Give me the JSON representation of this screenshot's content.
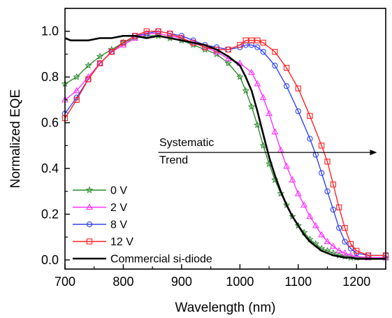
{
  "chart_data": {
    "type": "line",
    "xlabel": "Wavelength (nm)",
    "ylabel": "Normalized EQE",
    "xlim": [
      700,
      1250
    ],
    "ylim": [
      -0.04,
      1.1
    ],
    "x_ticks": [
      "700",
      "800",
      "900",
      "1000",
      "1100",
      "1200"
    ],
    "y_ticks": [
      "0.0",
      "0.2",
      "0.4",
      "0.6",
      "0.8",
      "1.0"
    ],
    "legend_position": "bottom-left",
    "annotation": {
      "text_line1": "Systematic",
      "text_line2": "Trend",
      "arrow_from_x": 860,
      "arrow_to_x": 1235,
      "arrow_y": 0.47
    },
    "series": [
      {
        "name": "0 V",
        "color": "#2e8b2e",
        "marker": "star",
        "x": [
          700,
          720,
          740,
          760,
          780,
          800,
          820,
          840,
          860,
          880,
          900,
          920,
          940,
          960,
          980,
          1000,
          1010,
          1020,
          1030,
          1040,
          1050,
          1060,
          1070,
          1080,
          1090,
          1100,
          1110,
          1120,
          1130,
          1140,
          1150,
          1160,
          1170,
          1180,
          1190,
          1200,
          1220,
          1250
        ],
        "y": [
          0.77,
          0.8,
          0.85,
          0.89,
          0.92,
          0.95,
          0.97,
          0.98,
          0.98,
          0.97,
          0.96,
          0.94,
          0.92,
          0.9,
          0.86,
          0.8,
          0.74,
          0.67,
          0.59,
          0.5,
          0.42,
          0.35,
          0.29,
          0.24,
          0.19,
          0.15,
          0.12,
          0.09,
          0.07,
          0.05,
          0.04,
          0.03,
          0.02,
          0.015,
          0.01,
          0.01,
          0.01,
          0.01
        ]
      },
      {
        "name": "2 V",
        "color": "#ff33ff",
        "marker": "triangle",
        "x": [
          700,
          720,
          740,
          760,
          780,
          800,
          820,
          840,
          860,
          880,
          900,
          920,
          940,
          960,
          980,
          1000,
          1020,
          1030,
          1040,
          1050,
          1060,
          1070,
          1080,
          1090,
          1100,
          1110,
          1120,
          1130,
          1140,
          1150,
          1160,
          1170,
          1180,
          1190,
          1200,
          1220,
          1250
        ],
        "y": [
          0.7,
          0.74,
          0.8,
          0.86,
          0.91,
          0.94,
          0.97,
          0.99,
          0.99,
          0.98,
          0.97,
          0.95,
          0.93,
          0.91,
          0.88,
          0.86,
          0.82,
          0.77,
          0.71,
          0.64,
          0.56,
          0.48,
          0.41,
          0.35,
          0.29,
          0.24,
          0.19,
          0.15,
          0.11,
          0.08,
          0.06,
          0.04,
          0.03,
          0.02,
          0.015,
          0.01,
          0.01
        ]
      },
      {
        "name": "8 V",
        "color": "#3344ee",
        "marker": "circle",
        "x": [
          700,
          720,
          740,
          760,
          780,
          800,
          820,
          840,
          860,
          880,
          900,
          920,
          940,
          960,
          980,
          1000,
          1010,
          1020,
          1030,
          1040,
          1060,
          1080,
          1100,
          1120,
          1130,
          1140,
          1150,
          1160,
          1170,
          1180,
          1190,
          1200,
          1220,
          1250
        ],
        "y": [
          0.64,
          0.71,
          0.79,
          0.86,
          0.91,
          0.95,
          0.98,
          0.99,
          1.0,
          0.99,
          0.98,
          0.96,
          0.94,
          0.93,
          0.92,
          0.93,
          0.94,
          0.94,
          0.93,
          0.91,
          0.85,
          0.76,
          0.65,
          0.53,
          0.46,
          0.38,
          0.3,
          0.22,
          0.14,
          0.08,
          0.05,
          0.03,
          0.02,
          0.02
        ]
      },
      {
        "name": "12 V",
        "color": "#ff2222",
        "marker": "square",
        "x": [
          700,
          720,
          740,
          760,
          780,
          800,
          820,
          840,
          860,
          880,
          900,
          920,
          940,
          960,
          980,
          1000,
          1010,
          1020,
          1030,
          1040,
          1060,
          1080,
          1100,
          1120,
          1140,
          1150,
          1160,
          1170,
          1180,
          1190,
          1200,
          1220,
          1250
        ],
        "y": [
          0.62,
          0.7,
          0.79,
          0.86,
          0.91,
          0.95,
          0.98,
          1.0,
          1.0,
          0.99,
          0.97,
          0.95,
          0.93,
          0.92,
          0.92,
          0.94,
          0.96,
          0.96,
          0.96,
          0.95,
          0.91,
          0.84,
          0.75,
          0.63,
          0.5,
          0.43,
          0.33,
          0.23,
          0.14,
          0.07,
          0.04,
          0.02,
          0.02
        ]
      },
      {
        "name": "Commercial si-diode",
        "color": "#000000",
        "marker": "none",
        "x": [
          700,
          710,
          720,
          740,
          760,
          780,
          800,
          820,
          840,
          860,
          880,
          900,
          920,
          940,
          960,
          980,
          1000,
          1010,
          1020,
          1030,
          1040,
          1050,
          1060,
          1070,
          1080,
          1090,
          1100,
          1110,
          1120,
          1130,
          1140,
          1150,
          1160,
          1170,
          1180,
          1190,
          1200,
          1220,
          1250
        ],
        "y": [
          0.97,
          0.96,
          0.96,
          0.96,
          0.97,
          0.97,
          0.98,
          0.98,
          0.97,
          0.98,
          0.97,
          0.96,
          0.95,
          0.94,
          0.92,
          0.89,
          0.85,
          0.8,
          0.74,
          0.65,
          0.55,
          0.45,
          0.37,
          0.3,
          0.24,
          0.19,
          0.15,
          0.11,
          0.08,
          0.06,
          0.04,
          0.03,
          0.02,
          0.015,
          0.01,
          0.01,
          0.005,
          0.005,
          0.005
        ]
      }
    ]
  }
}
